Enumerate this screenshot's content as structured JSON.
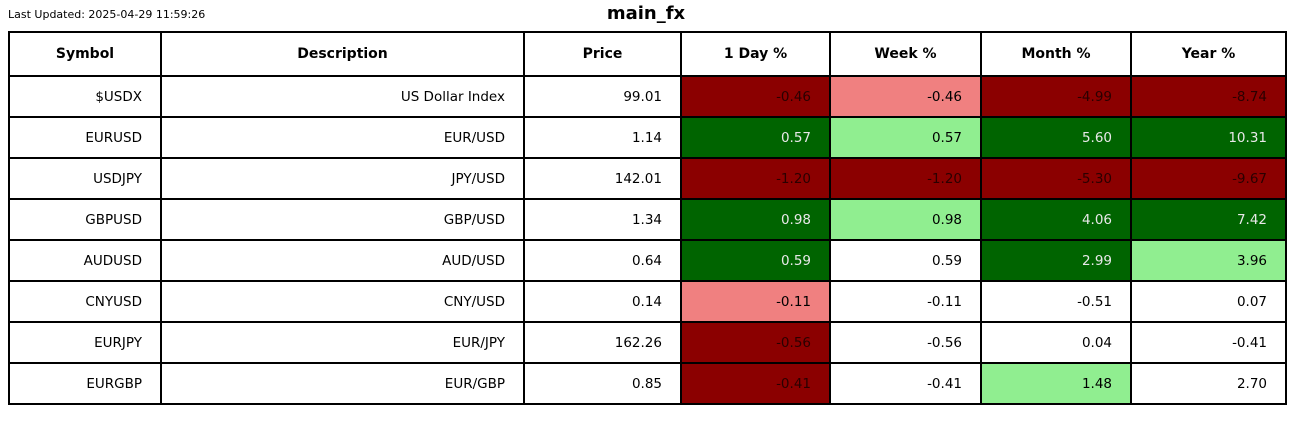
{
  "meta": {
    "last_updated": "Last Updated: 2025-04-29 11:59:26",
    "title": "main_fx"
  },
  "colors": {
    "dark_red": {
      "bg": "#8b0000",
      "text": "#2a0000"
    },
    "light_red": {
      "bg": "#f08080",
      "text": "#000000"
    },
    "dark_green": {
      "bg": "#006400",
      "text": "#e8e8e8"
    },
    "light_green": {
      "bg": "#90ee90",
      "text": "#000000"
    },
    "none": {
      "bg": "#ffffff",
      "text": "#000000"
    }
  },
  "chart_data": {
    "type": "table",
    "title": "main_fx",
    "columns": [
      "Symbol",
      "Description",
      "Price",
      "1 Day %",
      "Week %",
      "Month %",
      "Year %"
    ],
    "rows": [
      {
        "symbol": "$USDX",
        "description": "US Dollar Index",
        "price": "99.01",
        "changes": [
          {
            "value": "-0.46",
            "color": "dark_red"
          },
          {
            "value": "-0.46",
            "color": "light_red"
          },
          {
            "value": "-4.99",
            "color": "dark_red"
          },
          {
            "value": "-8.74",
            "color": "dark_red"
          }
        ]
      },
      {
        "symbol": "EURUSD",
        "description": "EUR/USD",
        "price": "1.14",
        "changes": [
          {
            "value": "0.57",
            "color": "dark_green"
          },
          {
            "value": "0.57",
            "color": "light_green"
          },
          {
            "value": "5.60",
            "color": "dark_green"
          },
          {
            "value": "10.31",
            "color": "dark_green"
          }
        ]
      },
      {
        "symbol": "USDJPY",
        "description": "JPY/USD",
        "price": "142.01",
        "changes": [
          {
            "value": "-1.20",
            "color": "dark_red"
          },
          {
            "value": "-1.20",
            "color": "dark_red"
          },
          {
            "value": "-5.30",
            "color": "dark_red"
          },
          {
            "value": "-9.67",
            "color": "dark_red"
          }
        ]
      },
      {
        "symbol": "GBPUSD",
        "description": "GBP/USD",
        "price": "1.34",
        "changes": [
          {
            "value": "0.98",
            "color": "dark_green"
          },
          {
            "value": "0.98",
            "color": "light_green"
          },
          {
            "value": "4.06",
            "color": "dark_green"
          },
          {
            "value": "7.42",
            "color": "dark_green"
          }
        ]
      },
      {
        "symbol": "AUDUSD",
        "description": "AUD/USD",
        "price": "0.64",
        "changes": [
          {
            "value": "0.59",
            "color": "dark_green"
          },
          {
            "value": "0.59",
            "color": "none"
          },
          {
            "value": "2.99",
            "color": "dark_green"
          },
          {
            "value": "3.96",
            "color": "light_green"
          }
        ]
      },
      {
        "symbol": "CNYUSD",
        "description": "CNY/USD",
        "price": "0.14",
        "changes": [
          {
            "value": "-0.11",
            "color": "light_red"
          },
          {
            "value": "-0.11",
            "color": "none"
          },
          {
            "value": "-0.51",
            "color": "none"
          },
          {
            "value": "0.07",
            "color": "none"
          }
        ]
      },
      {
        "symbol": "EURJPY",
        "description": "EUR/JPY",
        "price": "162.26",
        "changes": [
          {
            "value": "-0.56",
            "color": "dark_red"
          },
          {
            "value": "-0.56",
            "color": "none"
          },
          {
            "value": "0.04",
            "color": "none"
          },
          {
            "value": "-0.41",
            "color": "none"
          }
        ]
      },
      {
        "symbol": "EURGBP",
        "description": "EUR/GBP",
        "price": "0.85",
        "changes": [
          {
            "value": "-0.41",
            "color": "dark_red"
          },
          {
            "value": "-0.41",
            "color": "none"
          },
          {
            "value": "1.48",
            "color": "light_green"
          },
          {
            "value": "2.70",
            "color": "none"
          }
        ]
      }
    ]
  }
}
